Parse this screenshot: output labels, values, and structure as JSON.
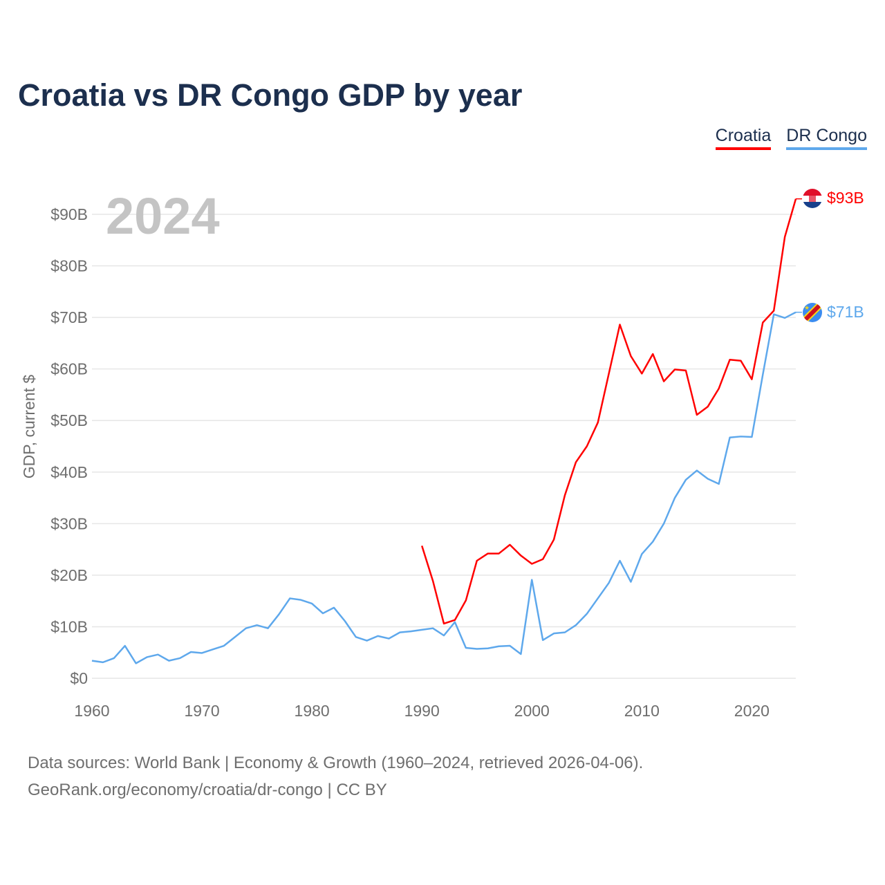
{
  "title": "Croatia vs DR Congo GDP by year",
  "legend": [
    "Croatia",
    "DR Congo"
  ],
  "year_watermark": "2024",
  "footer": {
    "line1": "Data sources: World Bank | Economy & Growth (1960–2024, retrieved 2026-04-06).",
    "line2": "GeoRank.org/economy/croatia/dr-congo | CC BY"
  },
  "end_labels": {
    "croatia": "$93B",
    "drcongo": "$71B"
  },
  "colors": {
    "croatia": "#ff0000",
    "drcongo": "#5ea8ec",
    "title": "#1c2f4e"
  },
  "chart_data": {
    "type": "line",
    "title": "Croatia vs DR Congo GDP by year",
    "xlabel": "",
    "ylabel": "GDP, current $",
    "xlim": [
      1960,
      2024
    ],
    "ylim": [
      0,
      95
    ],
    "x_ticks": [
      1960,
      1970,
      1980,
      1990,
      2000,
      2010,
      2020
    ],
    "y_ticks": [
      0,
      10,
      20,
      30,
      40,
      50,
      60,
      70,
      80,
      90
    ],
    "y_tick_labels": [
      "$0",
      "$10B",
      "$20B",
      "$30B",
      "$40B",
      "$50B",
      "$60B",
      "$70B",
      "$80B",
      "$90B"
    ],
    "grid": true,
    "legend_position": "top-right",
    "series": [
      {
        "name": "Croatia",
        "start_year": 1990,
        "values": [
          25.7,
          18.9,
          10.6,
          11.3,
          15.1,
          22.8,
          24.2,
          24.2,
          25.9,
          23.8,
          22.2,
          23.1,
          26.9,
          35.5,
          41.9,
          45.0,
          49.6,
          59.1,
          68.6,
          62.5,
          59.1,
          62.9,
          57.6,
          59.9,
          59.7,
          51.1,
          52.7,
          56.2,
          61.8,
          61.6,
          58.0,
          69.0,
          71.3,
          85.6,
          93.0
        ]
      },
      {
        "name": "DR Congo",
        "start_year": 1960,
        "values": [
          3.4,
          3.1,
          3.9,
          6.3,
          2.9,
          4.1,
          4.6,
          3.4,
          3.9,
          5.1,
          4.9,
          5.6,
          6.3,
          8.0,
          9.7,
          10.3,
          9.7,
          12.4,
          15.5,
          15.2,
          14.5,
          12.6,
          13.7,
          11.1,
          8.0,
          7.3,
          8.2,
          7.7,
          8.9,
          9.1,
          9.4,
          9.7,
          8.3,
          10.9,
          5.9,
          5.7,
          5.8,
          6.2,
          6.3,
          4.7,
          19.1,
          7.4,
          8.7,
          8.9,
          10.3,
          12.5,
          15.5,
          18.5,
          22.8,
          18.7,
          24.1,
          26.5,
          30.0,
          35.0,
          38.5,
          40.3,
          38.7,
          37.7,
          46.7,
          46.9,
          46.8,
          58.9,
          70.6,
          69.9,
          71.0
        ]
      }
    ]
  }
}
